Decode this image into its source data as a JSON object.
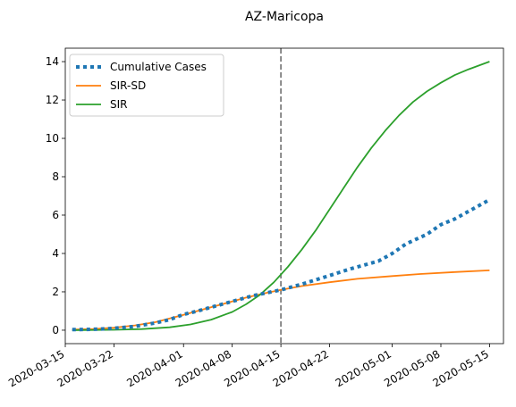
{
  "chart_data": {
    "type": "line",
    "title": "AZ-Maricopa",
    "xlabel": "",
    "ylabel": "",
    "x_type": "date",
    "xlim": [
      "2020-03-15",
      "2020-05-17"
    ],
    "ylim": [
      -0.7,
      14.7
    ],
    "x_ticks": [
      "2020-03-15",
      "2020-03-22",
      "2020-04-01",
      "2020-04-08",
      "2020-04-15",
      "2020-04-22",
      "2020-05-01",
      "2020-05-08",
      "2020-05-15"
    ],
    "y_ticks": [
      0,
      2,
      4,
      6,
      8,
      10,
      12,
      14
    ],
    "grid": false,
    "legend_position": "top-left",
    "vline": {
      "x": "2020-04-15",
      "color": "#7f7f7f",
      "style": "dashed"
    },
    "series": [
      {
        "name": "Cumulative Cases",
        "color": "#1f77b4",
        "style": "dotted",
        "points": [
          [
            "2020-03-16",
            0.03
          ],
          [
            "2020-03-18",
            0.04
          ],
          [
            "2020-03-20",
            0.06
          ],
          [
            "2020-03-22",
            0.1
          ],
          [
            "2020-03-25",
            0.2
          ],
          [
            "2020-03-28",
            0.38
          ],
          [
            "2020-03-30",
            0.55
          ],
          [
            "2020-04-01",
            0.82
          ],
          [
            "2020-04-03",
            1.0
          ],
          [
            "2020-04-05",
            1.2
          ],
          [
            "2020-04-08",
            1.5
          ],
          [
            "2020-04-11",
            1.8
          ],
          [
            "2020-04-13",
            1.95
          ],
          [
            "2020-04-15",
            2.1
          ],
          [
            "2020-04-18",
            2.4
          ],
          [
            "2020-04-22",
            2.85
          ],
          [
            "2020-04-25",
            3.2
          ],
          [
            "2020-04-29",
            3.6
          ],
          [
            "2020-05-01",
            4.0
          ],
          [
            "2020-05-03",
            4.5
          ],
          [
            "2020-05-06",
            5.0
          ],
          [
            "2020-05-08",
            5.5
          ],
          [
            "2020-05-10",
            5.8
          ],
          [
            "2020-05-12",
            6.2
          ],
          [
            "2020-05-15",
            6.8
          ]
        ]
      },
      {
        "name": "SIR-SD",
        "color": "#ff7f0e",
        "style": "solid",
        "points": [
          [
            "2020-03-16",
            0.03
          ],
          [
            "2020-03-19",
            0.06
          ],
          [
            "2020-03-22",
            0.13
          ],
          [
            "2020-03-25",
            0.25
          ],
          [
            "2020-03-28",
            0.42
          ],
          [
            "2020-04-01",
            0.8
          ],
          [
            "2020-04-04",
            1.1
          ],
          [
            "2020-04-07",
            1.4
          ],
          [
            "2020-04-10",
            1.7
          ],
          [
            "2020-04-13",
            1.95
          ],
          [
            "2020-04-15",
            2.1
          ],
          [
            "2020-04-18",
            2.3
          ],
          [
            "2020-04-22",
            2.5
          ],
          [
            "2020-04-26",
            2.68
          ],
          [
            "2020-05-01",
            2.82
          ],
          [
            "2020-05-05",
            2.93
          ],
          [
            "2020-05-10",
            3.03
          ],
          [
            "2020-05-15",
            3.12
          ]
        ]
      },
      {
        "name": "SIR",
        "color": "#2ca02c",
        "style": "solid",
        "points": [
          [
            "2020-03-16",
            0.0
          ],
          [
            "2020-03-22",
            0.02
          ],
          [
            "2020-03-26",
            0.06
          ],
          [
            "2020-03-30",
            0.15
          ],
          [
            "2020-04-02",
            0.3
          ],
          [
            "2020-04-05",
            0.55
          ],
          [
            "2020-04-08",
            0.95
          ],
          [
            "2020-04-10",
            1.35
          ],
          [
            "2020-04-12",
            1.85
          ],
          [
            "2020-04-14",
            2.5
          ],
          [
            "2020-04-16",
            3.3
          ],
          [
            "2020-04-18",
            4.2
          ],
          [
            "2020-04-20",
            5.2
          ],
          [
            "2020-04-22",
            6.3
          ],
          [
            "2020-04-24",
            7.4
          ],
          [
            "2020-04-26",
            8.5
          ],
          [
            "2020-04-28",
            9.5
          ],
          [
            "2020-04-30",
            10.4
          ],
          [
            "2020-05-02",
            11.2
          ],
          [
            "2020-05-04",
            11.9
          ],
          [
            "2020-05-06",
            12.45
          ],
          [
            "2020-05-08",
            12.9
          ],
          [
            "2020-05-10",
            13.3
          ],
          [
            "2020-05-12",
            13.6
          ],
          [
            "2020-05-15",
            14.0
          ]
        ]
      }
    ]
  }
}
